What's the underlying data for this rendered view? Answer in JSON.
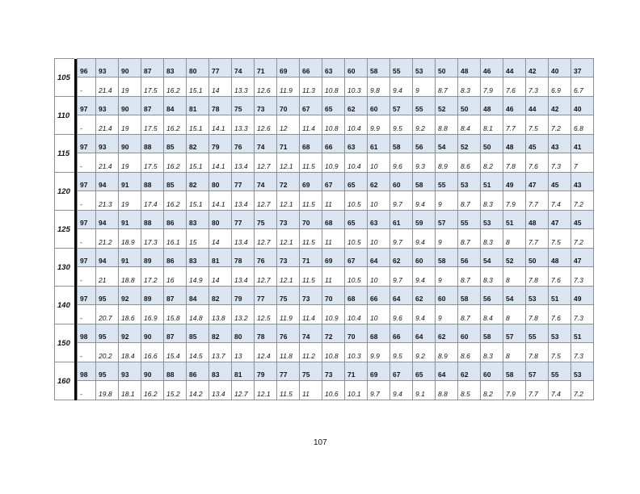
{
  "table": {
    "groups": [
      {
        "label": "105",
        "top": [
          "96",
          "93",
          "90",
          "87",
          "83",
          "80",
          "77",
          "74",
          "71",
          "69",
          "66",
          "63",
          "60",
          "58",
          "55",
          "53",
          "50",
          "48",
          "46",
          "44",
          "42",
          "40",
          "37"
        ],
        "bottom": [
          "-",
          "21.4",
          "19",
          "17.5",
          "16.2",
          "15.1",
          "14",
          "13.3",
          "12.6",
          "11.9",
          "11.3",
          "10.8",
          "10.3",
          "9.8",
          "9.4",
          "9",
          "8.7",
          "8.3",
          "7.9",
          "7.6",
          "7.3",
          "6.9",
          "6.7"
        ]
      },
      {
        "label": "110",
        "top": [
          "97",
          "93",
          "90",
          "87",
          "84",
          "81",
          "78",
          "75",
          "73",
          "70",
          "67",
          "65",
          "62",
          "60",
          "57",
          "55",
          "52",
          "50",
          "48",
          "46",
          "44",
          "42",
          "40"
        ],
        "bottom": [
          "-",
          "21.4",
          "19",
          "17.5",
          "16.2",
          "15.1",
          "14.1",
          "13.3",
          "12.6",
          "12",
          "11.4",
          "10.8",
          "10.4",
          "9.9",
          "9.5",
          "9.2",
          "8.8",
          "8.4",
          "8.1",
          "7.7",
          "7.5",
          "7.2",
          "6.8"
        ]
      },
      {
        "label": "115",
        "top": [
          "97",
          "93",
          "90",
          "88",
          "85",
          "82",
          "79",
          "76",
          "74",
          "71",
          "68",
          "66",
          "63",
          "61",
          "58",
          "56",
          "54",
          "52",
          "50",
          "48",
          "45",
          "43",
          "41"
        ],
        "bottom": [
          "-",
          "21.4",
          "19",
          "17.5",
          "16.2",
          "15.1",
          "14.1",
          "13.4",
          "12.7",
          "12.1",
          "11.5",
          "10.9",
          "10.4",
          "10",
          "9.6",
          "9.3",
          "8.9",
          "8.6",
          "8.2",
          "7.8",
          "7.6",
          "7.3",
          "7"
        ]
      },
      {
        "label": "120",
        "top": [
          "97",
          "94",
          "91",
          "88",
          "85",
          "82",
          "80",
          "77",
          "74",
          "72",
          "69",
          "67",
          "65",
          "62",
          "60",
          "58",
          "55",
          "53",
          "51",
          "49",
          "47",
          "45",
          "43"
        ],
        "bottom": [
          "-",
          "21.3",
          "19",
          "17.4",
          "16.2",
          "15.1",
          "14.1",
          "13.4",
          "12.7",
          "12.1",
          "11.5",
          "11",
          "10.5",
          "10",
          "9.7",
          "9.4",
          "9",
          "8.7",
          "8.3",
          "7.9",
          "7.7",
          "7.4",
          "7.2"
        ]
      },
      {
        "label": "125",
        "top": [
          "97",
          "94",
          "91",
          "88",
          "86",
          "83",
          "80",
          "77",
          "75",
          "73",
          "70",
          "68",
          "65",
          "63",
          "61",
          "59",
          "57",
          "55",
          "53",
          "51",
          "48",
          "47",
          "45"
        ],
        "bottom": [
          "-",
          "21.2",
          "18.9",
          "17.3",
          "16.1",
          "15",
          "14",
          "13.4",
          "12.7",
          "12.1",
          "11.5",
          "11",
          "10.5",
          "10",
          "9.7",
          "9.4",
          "9",
          "8.7",
          "8.3",
          "8",
          "7.7",
          "7.5",
          "7.2"
        ]
      },
      {
        "label": "130",
        "top": [
          "97",
          "94",
          "91",
          "89",
          "86",
          "83",
          "81",
          "78",
          "76",
          "73",
          "71",
          "69",
          "67",
          "64",
          "62",
          "60",
          "58",
          "56",
          "54",
          "52",
          "50",
          "48",
          "47"
        ],
        "bottom": [
          "-",
          "21",
          "18.8",
          "17.2",
          "16",
          "14.9",
          "14",
          "13.4",
          "12.7",
          "12.1",
          "11.5",
          "11",
          "10.5",
          "10",
          "9.7",
          "9.4",
          "9",
          "8.7",
          "8.3",
          "8",
          "7.8",
          "7.6",
          "7.3"
        ]
      },
      {
        "label": "140",
        "top": [
          "97",
          "95",
          "92",
          "89",
          "87",
          "84",
          "82",
          "79",
          "77",
          "75",
          "73",
          "70",
          "68",
          "66",
          "64",
          "62",
          "60",
          "58",
          "56",
          "54",
          "53",
          "51",
          "49"
        ],
        "bottom": [
          "-",
          "20.7",
          "18.6",
          "16.9",
          "15.8",
          "14.8",
          "13.8",
          "13.2",
          "12.5",
          "11.9",
          "11.4",
          "10.9",
          "10.4",
          "10",
          "9.6",
          "9.4",
          "9",
          "8.7",
          "8.4",
          "8",
          "7.8",
          "7.6",
          "7.3"
        ]
      },
      {
        "label": "150",
        "top": [
          "98",
          "95",
          "92",
          "90",
          "87",
          "85",
          "82",
          "80",
          "78",
          "76",
          "74",
          "72",
          "70",
          "68",
          "66",
          "64",
          "62",
          "60",
          "58",
          "57",
          "55",
          "53",
          "51"
        ],
        "bottom": [
          "-",
          "20.2",
          "18.4",
          "16.6",
          "15.4",
          "14.5",
          "13.7",
          "13",
          "12.4",
          "11.8",
          "11.2",
          "10.8",
          "10.3",
          "9.9",
          "9.5",
          "9.2",
          "8.9",
          "8.6",
          "8.3",
          "8",
          "7.8",
          "7.5",
          "7.3"
        ]
      },
      {
        "label": "160",
        "top": [
          "98",
          "95",
          "93",
          "90",
          "88",
          "86",
          "83",
          "81",
          "79",
          "77",
          "75",
          "73",
          "71",
          "69",
          "67",
          "65",
          "64",
          "62",
          "60",
          "58",
          "57",
          "55",
          "53"
        ],
        "bottom": [
          "-",
          "19.8",
          "18.1",
          "16.2",
          "15.2",
          "14.2",
          "13.4",
          "12.7",
          "12.1",
          "11.5",
          "11",
          "10.6",
          "10.1",
          "9.7",
          "9.4",
          "9.1",
          "8.8",
          "8.5",
          "8.2",
          "7.9",
          "7.7",
          "7.4",
          "7.2"
        ]
      }
    ],
    "header_row_color": "#dbe5f1"
  },
  "page_number": "107"
}
